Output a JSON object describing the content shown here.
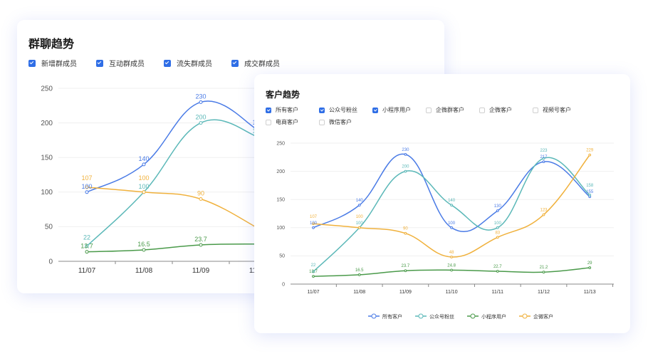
{
  "back_card": {
    "title": "群聊趋势",
    "checkboxes": [
      {
        "label": "新增群成员",
        "checked": true
      },
      {
        "label": "互动群成员",
        "checked": true
      },
      {
        "label": "流失群成员",
        "checked": true
      },
      {
        "label": "成交群成员",
        "checked": true
      }
    ]
  },
  "front_card": {
    "title": "客户趋势",
    "checkboxes": [
      {
        "label": "所有客户",
        "checked": true
      },
      {
        "label": "公众号粉丝",
        "checked": true
      },
      {
        "label": "小程序用户",
        "checked": true
      },
      {
        "label": "企微群客户",
        "checked": false
      },
      {
        "label": "企微客户",
        "checked": false
      },
      {
        "label": "视频号客户",
        "checked": false
      },
      {
        "label": "电商客户",
        "checked": false
      },
      {
        "label": "微信客户",
        "checked": false
      }
    ]
  },
  "chart_data": [
    {
      "type": "line",
      "smooth": true,
      "ylim": [
        0,
        250
      ],
      "yticks": [
        0,
        50,
        100,
        150,
        200,
        250
      ],
      "grid": true,
      "categories": [
        "11/07",
        "11/08",
        "11/09",
        "11/10"
      ],
      "series": [
        {
          "color": "#4a7be6",
          "values": [
            100,
            140,
            230,
            190
          ]
        },
        {
          "color": "#5bb8b8",
          "values": [
            22,
            100,
            200,
            180
          ]
        },
        {
          "color": "#f0b13c",
          "values": [
            107,
            100,
            90,
            48
          ]
        },
        {
          "color": "#4a9a4a",
          "values": [
            13.7,
            16.5,
            23.7,
            25
          ]
        }
      ]
    },
    {
      "type": "line",
      "smooth": true,
      "ylim": [
        0,
        250
      ],
      "yticks": [
        0,
        50,
        100,
        150,
        200,
        250
      ],
      "grid": true,
      "legend": "bottom",
      "categories": [
        "11/07",
        "11/08",
        "11/09",
        "11/10",
        "11/11",
        "11/12",
        "11/13"
      ],
      "series": [
        {
          "name": "所有客户",
          "color": "#4a7be6",
          "values": [
            100,
            140,
            230,
            100,
            130,
            217,
            155
          ]
        },
        {
          "name": "公众号粉丝",
          "color": "#5bb8b8",
          "values": [
            22,
            100,
            200,
            140,
            100,
            223,
            158
          ]
        },
        {
          "name": "小程序用户",
          "color": "#4a9a4a",
          "values": [
            13.7,
            16.5,
            23.7,
            24.8,
            22.7,
            21.2,
            29
          ]
        },
        {
          "name": "企微客户",
          "color": "#f0b13c",
          "values": [
            107,
            100,
            90,
            48,
            83,
            123,
            229
          ]
        }
      ]
    }
  ]
}
